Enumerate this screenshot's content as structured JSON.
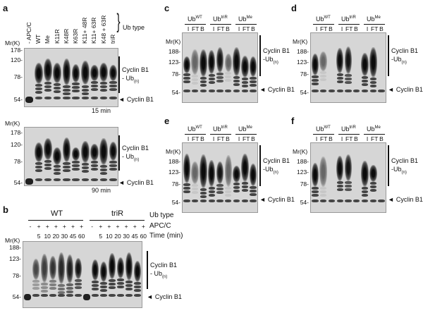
{
  "mr_label": "Mr(K)",
  "arrow": "◄",
  "panel_a": {
    "label": "a",
    "lanes": [
      "- APC/C",
      "WT",
      "Me",
      "K11R",
      "K48R",
      "K63R",
      "K11+ 48R",
      "K11+ 63R",
      "K48 + 63R",
      "triR"
    ],
    "ub_type": "Ub type",
    "ticks": [
      "178-",
      "120-",
      "78-",
      "54-"
    ],
    "conj": "Cyclin B1",
    "conj2": "- Ub",
    "conj_sub": "(n)",
    "substrate": "Cyclin B1",
    "times": [
      "15 min",
      "90 min"
    ]
  },
  "panel_b": {
    "label": "b",
    "groups": [
      "WT",
      "triR"
    ],
    "ub_type": "Ub type",
    "apc_label": "APC/C",
    "apc": [
      "-",
      "+",
      "+",
      "+",
      "+",
      "+",
      "+",
      "-",
      "+",
      "+",
      "+",
      "+",
      "+",
      "+"
    ],
    "time_label": "Time (min)",
    "times": [
      "",
      "5",
      "10",
      "20",
      "30",
      "45",
      "60",
      "",
      "5",
      "10",
      "20",
      "30",
      "45",
      "60"
    ],
    "ticks": [
      "188-",
      "123-",
      "78-",
      "54-"
    ],
    "conj": "Cyclin B1",
    "conj2": "- Ub",
    "conj_sub": "(n)",
    "substrate": "Cyclin B1"
  },
  "pull_panels": [
    {
      "label": "c",
      "groups": [
        {
          "base": "Ub",
          "sup": "WT"
        },
        {
          "base": "Ub",
          "sup": "triR"
        },
        {
          "base": "Ub",
          "sup": "Me"
        }
      ],
      "fractions": [
        "I",
        "FT",
        "B"
      ],
      "ticks": [
        "188-",
        "123-",
        "78-",
        "54-"
      ],
      "conj": "Cyclin B1",
      "conj2": "-Ub",
      "conj_sub": "(n)",
      "substrate": "Cyclin B1"
    },
    {
      "label": "d",
      "groups": [
        {
          "base": "Ub",
          "sup": "WT"
        },
        {
          "base": "Ub",
          "sup": "triR"
        },
        {
          "base": "Ub",
          "sup": "Me"
        }
      ],
      "fractions": [
        "I",
        "FT",
        "B"
      ],
      "ticks": [
        "188-",
        "123-",
        "78-",
        "54-"
      ],
      "conj": "Cyclin B1",
      "conj2": "-Ub",
      "conj_sub": "(n)",
      "substrate": "Cyclin B1"
    },
    {
      "label": "e",
      "groups": [
        {
          "base": "Ub",
          "sup": "WT"
        },
        {
          "base": "Ub",
          "sup": "triR"
        },
        {
          "base": "Ub",
          "sup": "Me"
        }
      ],
      "fractions": [
        "I",
        "FT",
        "B"
      ],
      "ticks": [
        "188-",
        "123-",
        "78-",
        "54-"
      ],
      "conj": "Cyclin B1",
      "conj2": "-Ub",
      "conj_sub": "(n)",
      "substrate": "Cyclin B1"
    },
    {
      "label": "f",
      "groups": [
        {
          "base": "Ub",
          "sup": "WT"
        },
        {
          "base": "Ub",
          "sup": "triR"
        },
        {
          "base": "Ub",
          "sup": "Me"
        }
      ],
      "fractions": [
        "I",
        "FT",
        "B"
      ],
      "ticks": [
        "188-",
        "123-",
        "78-",
        "54-"
      ],
      "conj": "Cyclin B1",
      "conj2": "-Ub",
      "conj_sub": "(n)",
      "substrate": "Cyclin B1"
    }
  ]
}
